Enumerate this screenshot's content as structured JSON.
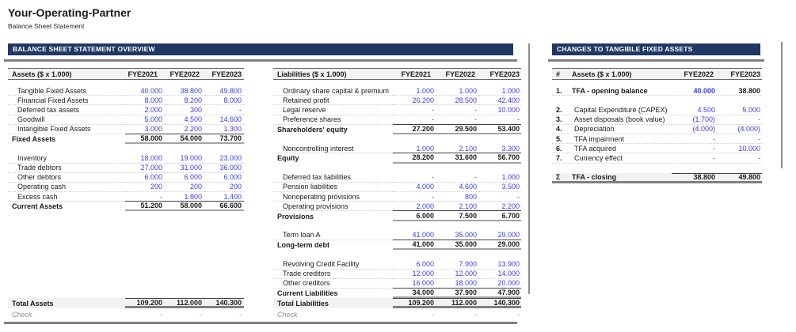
{
  "page": {
    "title": "Your-Operating-Partner",
    "subtitle": "Balance Sheet Statement"
  },
  "sections": {
    "overview": {
      "title": "BALANCE SHEET STATEMENT OVERVIEW"
    },
    "changes": {
      "title": "CHANGES TO TANGIBLE FIXED ASSETS"
    }
  },
  "colors": {
    "header_navy": "#1f3864",
    "input_blue": "#3b3bef",
    "rule_gray": "#808080",
    "header_fill": "#f2f2f2"
  },
  "tables": {
    "assets": {
      "title": "Assets ($ x 1.000)",
      "columns": [
        "FYE2021",
        "FYE2022",
        "FYE2023"
      ],
      "rows": [
        {
          "label": "Tangible Fixed Assets",
          "values": [
            "40.000",
            "38.800",
            "49.800"
          ],
          "style": "item"
        },
        {
          "label": "Financial Fixed Assets",
          "values": [
            "8.000",
            "8.200",
            "8.000"
          ],
          "style": "item"
        },
        {
          "label": "Deferred tax assets",
          "values": [
            "2.000",
            "300",
            "-"
          ],
          "style": "item"
        },
        {
          "label": "Goodwill",
          "values": [
            "5.000",
            "4.500",
            "14.600"
          ],
          "style": "item"
        },
        {
          "label": "Intangible Fixed Assets",
          "values": [
            "3.000",
            "2.200",
            "1.300"
          ],
          "style": "item_last"
        },
        {
          "label": "Fixed Assets",
          "values": [
            "58.000",
            "54.000",
            "73.700"
          ],
          "style": "subtotal"
        },
        {
          "style": "blank"
        },
        {
          "label": "Inventory",
          "values": [
            "18.000",
            "19.000",
            "23.000"
          ],
          "style": "item"
        },
        {
          "label": "Trade debtors",
          "values": [
            "27.000",
            "31.000",
            "36.000"
          ],
          "style": "item"
        },
        {
          "label": "Other debtors",
          "values": [
            "6.000",
            "6.000",
            "6.000"
          ],
          "style": "item"
        },
        {
          "label": "Operating cash",
          "values": [
            "200",
            "200",
            "200"
          ],
          "style": "item"
        },
        {
          "label": "Excess cash",
          "values": [
            "-",
            "1.800",
            "1.400"
          ],
          "style": "item_last"
        },
        {
          "label": "Current Assets",
          "values": [
            "51.200",
            "58.000",
            "66.600"
          ],
          "style": "subtotal"
        }
      ],
      "total": {
        "label": "Total Assets",
        "values": [
          "109.200",
          "112.000",
          "140.300"
        ]
      },
      "check": {
        "label": "Check",
        "values": [
          "-",
          "-",
          "-"
        ]
      }
    },
    "liabilities": {
      "title": "Liabilities ($ x 1.000)",
      "columns": [
        "FYE2021",
        "FYE2022",
        "FYE2023"
      ],
      "rows": [
        {
          "label": "Ordinary share capital & premium",
          "values": [
            "1.000",
            "1.000",
            "1.000"
          ],
          "style": "item"
        },
        {
          "label": "Retained profit",
          "values": [
            "26.200",
            "28.500",
            "42.400"
          ],
          "style": "item"
        },
        {
          "label": "Legal reserve",
          "values": [
            "-",
            "-",
            "10.000"
          ],
          "style": "item"
        },
        {
          "label": "Preference shares",
          "values": [
            "-",
            "-",
            "-"
          ],
          "style": "item_last"
        },
        {
          "label": "Shareholders' equity",
          "values": [
            "27.200",
            "29.500",
            "53.400"
          ],
          "style": "subtotal"
        },
        {
          "style": "blank"
        },
        {
          "label": "Noncontrolling interest",
          "values": [
            "1.000",
            "2.100",
            "3.300"
          ],
          "style": "item_last"
        },
        {
          "label": "Equity",
          "values": [
            "28.200",
            "31.600",
            "56.700"
          ],
          "style": "subtotal"
        },
        {
          "style": "blank"
        },
        {
          "label": "Deferred tax liabilities",
          "values": [
            "-",
            "-",
            "1.000"
          ],
          "style": "item"
        },
        {
          "label": "Pension liabilities",
          "values": [
            "4.000",
            "4.600",
            "3.500"
          ],
          "style": "item"
        },
        {
          "label": "Nonoperating provisions",
          "values": [
            "-",
            "800",
            "-"
          ],
          "style": "item"
        },
        {
          "label": "Operating provisions",
          "values": [
            "2.000",
            "2.100",
            "2.200"
          ],
          "style": "item_last"
        },
        {
          "label": "Provisions",
          "values": [
            "6.000",
            "7.500",
            "6.700"
          ],
          "style": "subtotal"
        },
        {
          "style": "blank"
        },
        {
          "label": "Term loan A",
          "values": [
            "41.000",
            "35.000",
            "29.000"
          ],
          "style": "item_last"
        },
        {
          "label": "Long-term debt",
          "values": [
            "41.000",
            "35.000",
            "29.000"
          ],
          "style": "subtotal"
        },
        {
          "style": "blank"
        },
        {
          "label": "Revolving Credit Facility",
          "values": [
            "6.000",
            "7.900",
            "13.900"
          ],
          "style": "item"
        },
        {
          "label": "Trade creditors",
          "values": [
            "12.000",
            "12.000",
            "14.000"
          ],
          "style": "item"
        },
        {
          "label": "Other creditors",
          "values": [
            "16.000",
            "18.000",
            "20.000"
          ],
          "style": "item_last"
        },
        {
          "label": "Current Liabilities",
          "values": [
            "34.000",
            "37.900",
            "47.900"
          ],
          "style": "subtotal"
        }
      ],
      "total": {
        "label": "Total Liabilities",
        "values": [
          "109.200",
          "112.000",
          "140.300"
        ]
      },
      "check": {
        "label": "Check",
        "values": [
          "-",
          "-",
          "-"
        ]
      }
    },
    "changes": {
      "num_header": "#",
      "title": "Assets ($ x 1.000)",
      "columns": [
        "FYE2022",
        "FYE2023"
      ],
      "rows": [
        {
          "num": "1.",
          "label": "TFA - opening balance",
          "values": [
            "40.000",
            "38.800"
          ],
          "style": "opening"
        },
        {
          "style": "blank"
        },
        {
          "num": "2.",
          "label": "Capital Expenditure (CAPEX)",
          "values": [
            "4.500",
            "5.000"
          ],
          "style": "item"
        },
        {
          "num": "3.",
          "label": "Asset disposals (book value)",
          "values": [
            "(1.700)",
            "-"
          ],
          "style": "item"
        },
        {
          "num": "4.",
          "label": "Depreciation",
          "values": [
            "(4.000)",
            "(4.000)"
          ],
          "style": "item"
        },
        {
          "num": "5.",
          "label": "TFA impairment",
          "values": [
            "-",
            "-"
          ],
          "style": "item"
        },
        {
          "num": "6.",
          "label": "TFA acquired",
          "values": [
            "-",
            "10.000"
          ],
          "style": "item"
        },
        {
          "num": "7.",
          "label": "Currency effect",
          "values": [
            "-",
            "-"
          ],
          "style": "item"
        },
        {
          "style": "blank"
        },
        {
          "num": "Σ",
          "label": "TFA - closing",
          "values": [
            "38.800",
            "49.800"
          ],
          "style": "sum"
        }
      ]
    }
  }
}
